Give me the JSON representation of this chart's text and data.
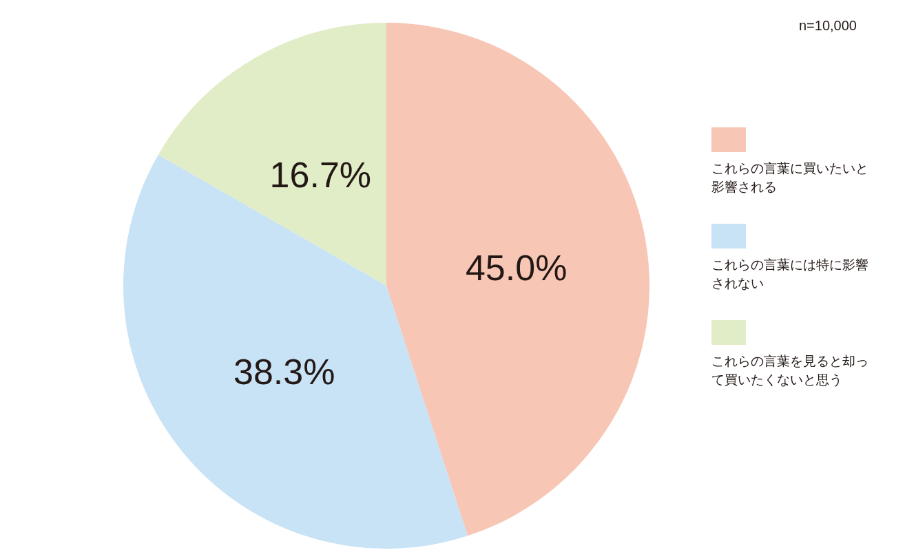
{
  "chart_data": {
    "type": "pie",
    "categories": [
      "これらの言葉に買いたいと影響される",
      "これらの言葉には特に影響されない",
      "これらの言葉を見ると却って買いたくないと思う"
    ],
    "values": [
      45.0,
      38.3,
      16.7
    ],
    "colors": [
      "#f7c6b5",
      "#c8e2f6",
      "#e1edc7"
    ],
    "value_labels": [
      "45.0%",
      "38.3%",
      "16.7%"
    ],
    "legend": "right",
    "annotations": [
      "n=10,000"
    ]
  }
}
